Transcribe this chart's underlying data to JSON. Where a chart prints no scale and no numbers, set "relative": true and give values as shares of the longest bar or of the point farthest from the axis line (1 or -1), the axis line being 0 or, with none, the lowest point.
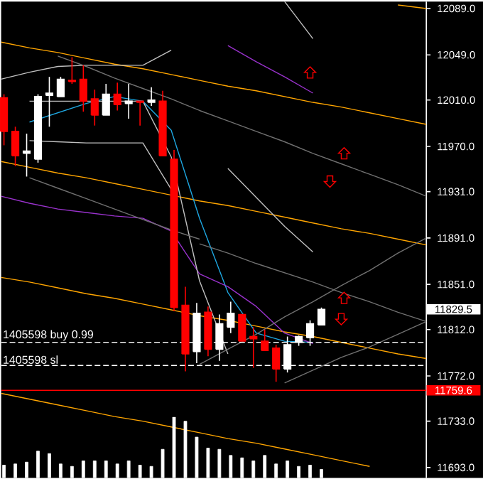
{
  "chart_data": [
    {
      "type": "candlestick",
      "categories": [
        null,
        null,
        null,
        null,
        null,
        null,
        null,
        null,
        null,
        null,
        null,
        null,
        null,
        null,
        null,
        null,
        null,
        null,
        null,
        null,
        null,
        null,
        null,
        null,
        null,
        null,
        null,
        null,
        null
      ],
      "ohlc": [
        [
          12012,
          12015,
          11971,
          11983
        ],
        [
          11983,
          11987,
          11953,
          11962
        ],
        [
          11964,
          11981,
          11944,
          11966
        ],
        [
          11959,
          12015,
          11956,
          12013
        ],
        [
          12014,
          12030,
          11987,
          12016
        ],
        [
          12013,
          12030,
          12013,
          12028
        ],
        [
          12027,
          12047,
          12024,
          12026
        ],
        [
          12028,
          12040,
          12000,
          12009
        ],
        [
          12011,
          12019,
          11988,
          11997
        ],
        [
          11997,
          12024,
          11997,
          12015
        ],
        [
          12015,
          12025,
          12001,
          12006
        ],
        [
          12007,
          12024,
          11994,
          12009
        ],
        [
          12009,
          12009,
          11988,
          12008
        ],
        [
          12008,
          12021,
          12005,
          12010
        ],
        [
          12009,
          12018,
          11962,
          11962
        ],
        [
          11959,
          11967,
          11828,
          11831
        ],
        [
          11833,
          11849,
          11776,
          11791
        ],
        [
          11793,
          11835,
          11783,
          11826
        ],
        [
          11827,
          11832,
          11789,
          11795
        ],
        [
          11795,
          11825,
          11785,
          11817
        ],
        [
          11814,
          11836,
          11809,
          11826
        ],
        [
          11825,
          11825,
          11802,
          11802
        ],
        [
          11806,
          11814,
          11779,
          11804
        ],
        [
          11802,
          11812,
          11794,
          11794
        ],
        [
          11796,
          11799,
          11767,
          11778
        ],
        [
          11778,
          11806,
          11775,
          11799
        ],
        [
          11801,
          11807,
          11798,
          11806
        ],
        [
          11805,
          11820,
          11798,
          11817
        ],
        [
          11816,
          11831,
          11816,
          11829.5
        ]
      ],
      "colors": [
        "#ff0000",
        "#ff0000",
        "#ffffff",
        "#ffffff",
        "#ffffff",
        "#ffffff",
        "#ff0000",
        "#ff0000",
        "#ff0000",
        "#ffffff",
        "#ff0000",
        "#ffffff",
        "#ff0000",
        "#ffffff",
        "#ff0000",
        "#ff0000",
        "#ff0000",
        "#ffffff",
        "#ff0000",
        "#ffffff",
        "#ffffff",
        "#ff0000",
        "#ff0000",
        "#ff0000",
        "#ff0000",
        "#ffffff",
        "#ffffff",
        "#ffffff",
        "#ffffff"
      ],
      "ylim": [
        11684,
        12095
      ],
      "tick_labels": false
    },
    {
      "type": "line",
      "categories": [
        null,
        null,
        null,
        null,
        null,
        null,
        null,
        null,
        null,
        null,
        null,
        null,
        null,
        null,
        null,
        null
      ],
      "ylim": [
        11684,
        12095
      ],
      "yticks": [
        {
          "value": 12089,
          "label": "12089.0"
        },
        {
          "value": 12049,
          "label": "12049.0"
        },
        {
          "value": 12010,
          "label": "12010.0"
        },
        {
          "value": 11970,
          "label": "11970.0"
        },
        {
          "value": 11931,
          "label": "11931.0"
        },
        {
          "value": 11891,
          "label": "11891.0"
        },
        {
          "value": 11851,
          "label": "11851.0"
        },
        {
          "value": 11812,
          "label": "11812.0"
        },
        {
          "value": 11772,
          "label": "11772.0"
        },
        {
          "value": 11733,
          "label": "11733.0"
        },
        {
          "value": 11693,
          "label": "11693.0"
        }
      ],
      "tick_labels": "y",
      "ref_lines": [
        {
          "axis": "y",
          "value": 11801,
          "label": "1405598 buy 0.99",
          "color": "#ffffff",
          "line_style": "dashed"
        },
        {
          "axis": "y",
          "value": 11781,
          "label": "1405598 sl",
          "color": "#ffffff",
          "line_style": "dashed"
        },
        {
          "axis": "y",
          "value": 11759.6,
          "label": "11759.6",
          "color": "#ff0000",
          "line_style": "solid"
        }
      ],
      "annotations": [
        "11829.5"
      ],
      "series": [
        {
          "color": "#ffa500",
          "values": [
            12060,
            12055,
            12051,
            12046,
            12041,
            12037,
            12032,
            12027,
            12022,
            12018,
            12013,
            12008,
            12004,
            11999,
            11994,
            11989
          ]
        },
        {
          "color": "#ffa500",
          "values": [
            11957,
            11952,
            11947,
            11943,
            11938,
            11933,
            11928,
            11923,
            11919,
            11914,
            11909,
            11904,
            11899,
            11895,
            11890,
            11885
          ]
        },
        {
          "color": "#ffa500",
          "values": [
            11857,
            11853,
            11848,
            11843,
            11839,
            11834,
            11829,
            11824,
            11820,
            11815,
            11810,
            11806,
            11801,
            11796,
            11791,
            11787
          ]
        },
        {
          "color": "#ffa500",
          "values": [
            11757,
            11752,
            11747,
            11742,
            11737,
            11733,
            11728,
            11723,
            11718,
            11714,
            11709,
            11704,
            11699,
            11694,
            null,
            null
          ]
        },
        {
          "color": "#ffa500",
          "values": [
            null,
            null,
            null,
            null,
            null,
            null,
            null,
            null,
            null,
            null,
            null,
            null,
            null,
            null,
            12092,
            12089
          ]
        },
        {
          "color": "#1ea7e1",
          "values": [
            null,
            11991,
            11999,
            12007,
            12013,
            12009,
            11984,
            11908,
            11844,
            11809,
            11802,
            11801,
            null,
            null,
            null,
            null
          ]
        },
        {
          "color": "#9932cc",
          "values": [
            11927,
            11921,
            11916,
            11913,
            11910,
            11908,
            11897,
            11860,
            11849,
            11832,
            11809,
            11800,
            null,
            null,
            null,
            null
          ]
        },
        {
          "color": "#9932cc",
          "values": [
            null,
            null,
            null,
            null,
            null,
            null,
            null,
            null,
            12057,
            12043,
            12030,
            12016,
            null,
            null,
            null,
            null
          ]
        },
        {
          "color": "#c0c0c0",
          "values": [
            12028,
            12034,
            12039,
            12040,
            12040,
            12040,
            12053,
            null,
            null,
            null,
            null,
            null,
            null,
            null,
            null,
            null
          ]
        },
        {
          "color": "#c0c0c0",
          "values": [
            null,
            12009,
            12009,
            12009,
            12009,
            12009,
            11961,
            11854,
            11791,
            null,
            null,
            null,
            null,
            null,
            null,
            null
          ]
        },
        {
          "color": "#c0c0c0",
          "values": [
            null,
            11975,
            11974,
            11973,
            11973,
            11973,
            11933,
            null,
            null,
            null,
            null,
            null,
            null,
            null,
            null,
            null
          ]
        },
        {
          "color": "#c0c0c0",
          "values": [
            null,
            null,
            null,
            null,
            null,
            null,
            null,
            null,
            11951,
            11926,
            11901,
            11879,
            null,
            null,
            null,
            null
          ]
        },
        {
          "color": "#c0c0c0",
          "values": [
            null,
            null,
            null,
            null,
            null,
            null,
            null,
            null,
            null,
            null,
            12095,
            12063,
            null,
            null,
            null,
            null
          ]
        },
        {
          "color": "#707070",
          "values": [
            null,
            11943,
            11934,
            11925,
            11916,
            11907,
            11898,
            11890,
            null,
            null,
            null,
            null,
            null,
            null,
            null,
            null
          ]
        },
        {
          "color": "#707070",
          "values": [
            null,
            null,
            12048,
            12039,
            12029,
            12020,
            12011,
            12001,
            11992,
            11983,
            11974,
            11964,
            11955,
            11946,
            11937,
            11927
          ]
        },
        {
          "color": "#707070",
          "values": [
            null,
            null,
            null,
            null,
            null,
            null,
            null,
            11886,
            11878,
            11869,
            11861,
            11853,
            11844,
            11836,
            11827,
            11819
          ]
        },
        {
          "color": "#707070",
          "values": [
            null,
            null,
            null,
            null,
            null,
            null,
            null,
            11782,
            11795,
            11808,
            11823,
            11836,
            11850,
            11863,
            11878,
            11891
          ]
        },
        {
          "color": "#707070",
          "values": [
            null,
            null,
            null,
            null,
            null,
            null,
            null,
            null,
            null,
            null,
            11766,
            11777,
            11788,
            11797,
            11808,
            11819
          ]
        }
      ]
    },
    {
      "type": "bar",
      "relative": true,
      "color": "#ffffff",
      "categories": [
        null,
        null,
        null,
        null,
        null,
        null,
        null,
        null,
        null,
        null,
        null,
        null,
        null,
        null,
        null,
        null,
        null,
        null,
        null,
        null,
        null,
        null,
        null,
        null,
        null,
        null,
        null,
        null,
        null
      ],
      "values": [
        0.21,
        0.23,
        0.26,
        0.44,
        0.4,
        0.23,
        0.19,
        0.28,
        0.28,
        0.28,
        0.23,
        0.28,
        0.21,
        0.19,
        0.47,
        1,
        0.93,
        0.67,
        0.49,
        0.47,
        0.37,
        0.33,
        0.28,
        0.37,
        0.23,
        0.28,
        0.19,
        0.21,
        0.14
      ]
    }
  ]
}
